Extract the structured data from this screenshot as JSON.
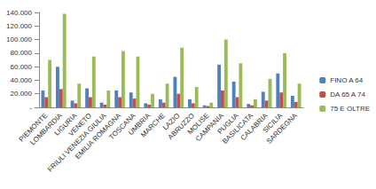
{
  "chart_data": {
    "type": "bar",
    "categories": [
      "PIEMONTE",
      "LOMBARDIA",
      "LIGURIA",
      "VENETO",
      "FRIULI VENEZIA GIULIA",
      "EMILIA ROMAGNA",
      "TOSCANA",
      "UMBRIA",
      "MARCHE",
      "LAZIO",
      "ABRUZZO",
      "MOLISE",
      "CAMPANIA",
      "PUGLIA",
      "BASILICATA",
      "CALABRIA",
      "SICILIA",
      "SARDEGNA"
    ],
    "series": [
      {
        "name": "FINO A 64",
        "color": "#4f81bd",
        "values": [
          25000,
          60000,
          10000,
          28000,
          7000,
          25000,
          22000,
          6000,
          12000,
          45000,
          12000,
          3000,
          63000,
          38000,
          5000,
          23000,
          50000,
          17000
        ]
      },
      {
        "name": "DA 65 A 74",
        "color": "#c0504d",
        "values": [
          15000,
          27000,
          6000,
          15000,
          4000,
          15000,
          13000,
          4000,
          7000,
          20000,
          6000,
          2000,
          25000,
          15000,
          3000,
          10000,
          22000,
          8000
        ]
      },
      {
        "name": "75 E OLTRE",
        "color": "#9bbb59",
        "values": [
          70000,
          138000,
          35000,
          75000,
          25000,
          83000,
          75000,
          20000,
          35000,
          88000,
          30000,
          7000,
          100000,
          65000,
          12000,
          42000,
          80000,
          35000
        ]
      }
    ],
    "ylim": [
      0,
      140000
    ],
    "yticks": [
      {
        "value": 0,
        "label": "-"
      },
      {
        "value": 20000,
        "label": "20.000"
      },
      {
        "value": 40000,
        "label": "40.000"
      },
      {
        "value": 60000,
        "label": "60.000"
      },
      {
        "value": 80000,
        "label": "80.000"
      },
      {
        "value": 100000,
        "label": "100.000"
      },
      {
        "value": 120000,
        "label": "120.000"
      },
      {
        "value": 140000,
        "label": "140.000"
      }
    ],
    "grid": false,
    "legend": "right"
  }
}
